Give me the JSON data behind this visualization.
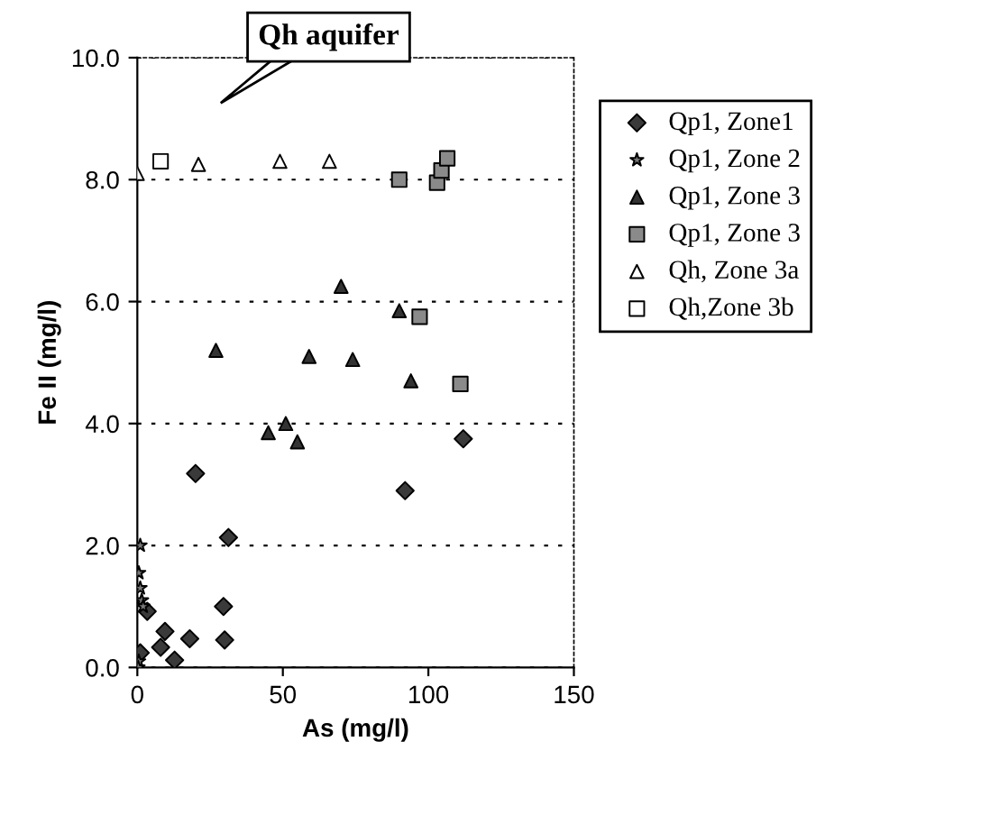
{
  "chart_data": {
    "type": "scatter",
    "xlabel": "As (mg/l)",
    "ylabel": "Fe II (mg/l)",
    "xlim": [
      0,
      150
    ],
    "xticks": [
      0,
      50,
      100,
      150
    ],
    "ylim": [
      0,
      10
    ],
    "yticks": [
      {
        "value": 0,
        "label": "0.0"
      },
      {
        "value": 2,
        "label": "2.0"
      },
      {
        "value": 4,
        "label": "4.0"
      },
      {
        "value": 6,
        "label": "6.0"
      },
      {
        "value": 8,
        "label": "8.0"
      },
      {
        "value": 10,
        "label": "10.0"
      }
    ],
    "grid": "y",
    "legend": "right",
    "annotations": [
      "Qh aquifer"
    ],
    "series": [
      {
        "name": "Qp1, Zone1",
        "color": "#3a3a3a",
        "marker": "diamond",
        "x": [
          20,
          31.3,
          29.6,
          30,
          18,
          9.5,
          8,
          12.8,
          3.4,
          1,
          92,
          112
        ],
        "values": [
          3.18,
          2.13,
          1.0,
          0.45,
          0.47,
          0.59,
          0.33,
          0.12,
          0.92,
          0.24,
          2.9,
          3.75
        ]
      },
      {
        "name": "Qp1, Zone 2",
        "color": "#777777",
        "marker": "star",
        "x": [
          1,
          0.5,
          1,
          1.5,
          2,
          0.5,
          0.3
        ],
        "values": [
          2.0,
          1.55,
          1.3,
          1.1,
          1.0,
          0.1,
          0.0
        ]
      },
      {
        "name": "Qp1, Zone 3",
        "color": "#333333",
        "marker": "triangle",
        "x": [
          27,
          45,
          51,
          55,
          59,
          70,
          74,
          90,
          94
        ],
        "values": [
          5.2,
          3.85,
          4.0,
          3.7,
          5.1,
          6.25,
          5.05,
          5.85,
          4.7
        ]
      },
      {
        "name": "Qp1, Zone 3",
        "color": "#8a8a8a",
        "marker": "square",
        "x": [
          90,
          103,
          104.5,
          106.5,
          97,
          111
        ],
        "values": [
          8.0,
          7.95,
          8.15,
          8.35,
          5.75,
          4.65
        ]
      },
      {
        "name": "Qh, Zone 3a",
        "color": "#ffffff",
        "marker": "triangle",
        "x": [
          0,
          21,
          49,
          66
        ],
        "values": [
          8.1,
          8.25,
          8.3,
          8.3
        ]
      },
      {
        "name": "Qh,Zone 3b",
        "color": "#ffffff",
        "marker": "square",
        "x": [
          8
        ],
        "values": [
          8.3
        ]
      }
    ]
  }
}
